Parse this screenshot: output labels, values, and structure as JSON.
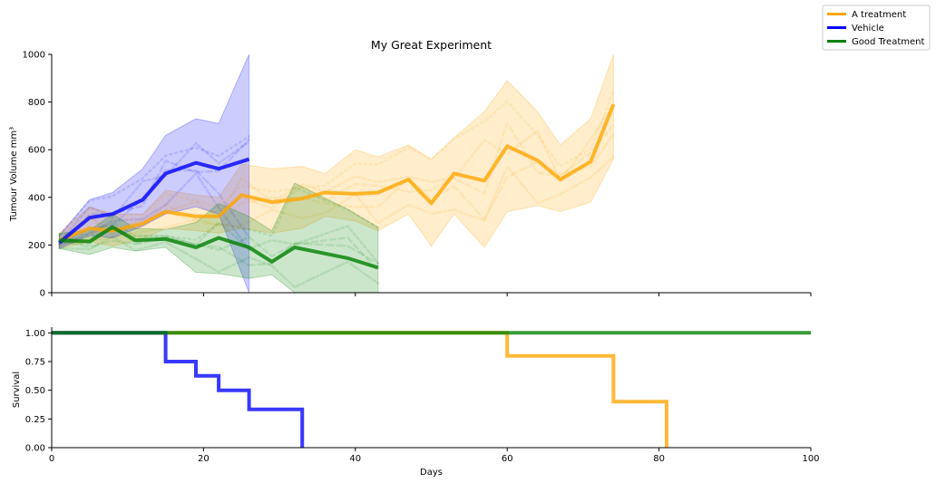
{
  "chart_data": [
    {
      "type": "line",
      "title": "My Great Experiment",
      "xlabel": "",
      "ylabel": "Tumour Volume mm³",
      "xlim": [
        0,
        100
      ],
      "ylim": [
        0,
        1000
      ],
      "xticks": [
        0,
        20,
        40,
        60,
        80,
        100
      ],
      "yticks": [
        0,
        200,
        400,
        600,
        800,
        1000
      ],
      "grid": false,
      "legend_placement": "top-right outside",
      "series": [
        {
          "name": "A treatment",
          "color": "#ffa500",
          "x": [
            1,
            5,
            8,
            12,
            15,
            19,
            22,
            25,
            29,
            33,
            36,
            40,
            43,
            47,
            50,
            53,
            57,
            60,
            64,
            67,
            71,
            74
          ],
          "values": [
            220,
            270,
            260,
            290,
            340,
            320,
            320,
            410,
            380,
            395,
            420,
            415,
            420,
            475,
            375,
            500,
            470,
            615,
            555,
            475,
            550,
            790
          ],
          "band_low": [
            185,
            215,
            195,
            225,
            270,
            260,
            250,
            270,
            250,
            270,
            320,
            300,
            260,
            330,
            195,
            330,
            190,
            340,
            365,
            340,
            380,
            560
          ],
          "band_high": [
            250,
            360,
            330,
            330,
            430,
            410,
            400,
            540,
            520,
            530,
            500,
            600,
            570,
            620,
            560,
            650,
            760,
            890,
            760,
            620,
            730,
            1000
          ]
        },
        {
          "name": "Vehicle",
          "color": "#0000ff",
          "x": [
            1,
            5,
            8,
            12,
            15,
            19,
            22,
            26
          ],
          "values": [
            210,
            315,
            330,
            390,
            500,
            545,
            520,
            560
          ],
          "band_low": [
            185,
            240,
            230,
            280,
            330,
            360,
            330,
            0
          ],
          "band_high": [
            240,
            390,
            420,
            520,
            660,
            730,
            710,
            1000
          ]
        },
        {
          "name": "Good Treatment",
          "color": "#008000",
          "x": [
            1,
            5,
            8,
            11,
            15,
            19,
            22,
            26,
            29,
            32,
            39,
            43
          ],
          "values": [
            220,
            215,
            275,
            220,
            225,
            190,
            230,
            190,
            130,
            190,
            145,
            105
          ],
          "band_low": [
            185,
            160,
            190,
            175,
            190,
            85,
            80,
            60,
            75,
            0,
            0,
            0
          ],
          "band_high": [
            250,
            260,
            330,
            270,
            265,
            295,
            375,
            320,
            260,
            460,
            350,
            275
          ]
        }
      ]
    },
    {
      "type": "line",
      "title": "",
      "xlabel": "Days",
      "ylabel": "Survival",
      "xlim": [
        0,
        100
      ],
      "ylim": [
        0,
        1.05
      ],
      "xticks": [
        0,
        20,
        40,
        60,
        80,
        100
      ],
      "ytick_labels": [
        "0.00",
        "0.25",
        "0.50",
        "0.75",
        "1.00"
      ],
      "grid": false,
      "series": [
        {
          "name": "A treatment",
          "color": "#ffa500",
          "step": true,
          "x": [
            0,
            60,
            74,
            81
          ],
          "values": [
            1.0,
            0.8,
            0.4,
            0.0
          ]
        },
        {
          "name": "Vehicle",
          "color": "#0000ff",
          "step": true,
          "x": [
            0,
            15,
            19,
            22,
            26,
            33
          ],
          "values": [
            1.0,
            0.75,
            0.625,
            0.5,
            0.333,
            0.0
          ]
        },
        {
          "name": "Good Treatment",
          "color": "#008000",
          "step": true,
          "x": [
            0,
            100
          ],
          "values": [
            1.0,
            1.0
          ]
        }
      ]
    }
  ],
  "legend": {
    "items": [
      {
        "label": "A treatment",
        "color": "#ffa500"
      },
      {
        "label": "Vehicle",
        "color": "#0000ff"
      },
      {
        "label": "Good Treatment",
        "color": "#008000"
      }
    ]
  }
}
